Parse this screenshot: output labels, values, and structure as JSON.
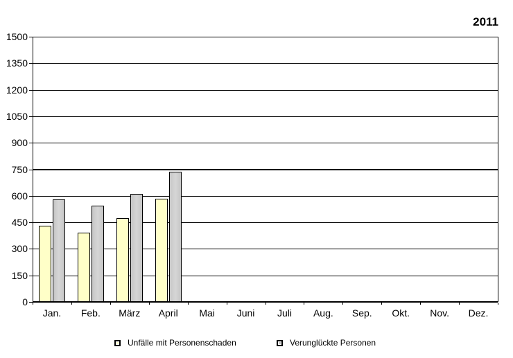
{
  "chart": {
    "year": "2011"
  },
  "chart_data": {
    "type": "bar",
    "title": "2011",
    "categories": [
      "Jan.",
      "Feb.",
      "März",
      "April",
      "Mai",
      "Juni",
      "Juli",
      "Aug.",
      "Sep.",
      "Okt.",
      "Nov.",
      "Dez."
    ],
    "series": [
      {
        "name": "Unfälle mit Personenschaden",
        "color": "#ffffc8",
        "values": [
          430,
          390,
          475,
          585,
          null,
          null,
          null,
          null,
          null,
          null,
          null,
          null
        ]
      },
      {
        "name": "Verunglückte Personen",
        "color": "#c6c6c6",
        "values": [
          580,
          545,
          610,
          735,
          null,
          null,
          null,
          null,
          null,
          null,
          null,
          null
        ]
      }
    ],
    "ylim": [
      0,
      1500
    ],
    "yticks": [
      0,
      150,
      300,
      450,
      600,
      750,
      900,
      1050,
      1200,
      1350,
      1500
    ],
    "emphasized_gridline": 750,
    "grid": "horizontal",
    "legend_position": "bottom",
    "axis_color": "#000000",
    "background_color": "#ffffff"
  }
}
